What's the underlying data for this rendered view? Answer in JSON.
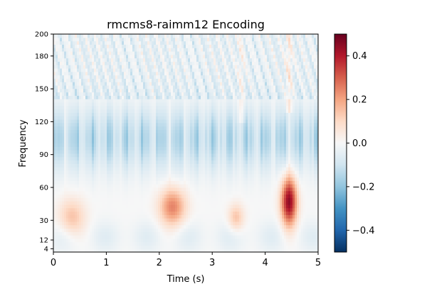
{
  "chart_data": {
    "type": "heatmap",
    "title": "rmcms8-raimm12 Encoding",
    "xlabel": "Time (s)",
    "ylabel": "Frequency",
    "xlim": [
      0,
      5
    ],
    "ylim": [
      1,
      200
    ],
    "x_ticks": [
      0,
      1,
      2,
      3,
      4,
      5
    ],
    "x_tick_labels": [
      "0",
      "1",
      "2",
      "3",
      "4",
      "5"
    ],
    "y_ticks": [
      4,
      12,
      30,
      60,
      90,
      120,
      150,
      180,
      200
    ],
    "y_tick_labels": [
      "4",
      "12",
      "30",
      "60",
      "90",
      "120",
      "150",
      "180",
      "200"
    ],
    "colormap": "RdBu_r",
    "colorbar": {
      "range": [
        -0.5,
        0.5
      ],
      "ticks": [
        0.4,
        0.2,
        0.0,
        -0.2,
        -0.4
      ],
      "tick_labels": [
        "0.4",
        "0.2",
        "0.0",
        "−0.2",
        "−0.4"
      ]
    },
    "features": [
      {
        "desc": "negative band",
        "t": [
          0,
          5
        ],
        "freq": [
          70,
          140
        ],
        "value": -0.25
      },
      {
        "desc": "positive blob",
        "t": [
          0.1,
          0.6
        ],
        "freq": [
          15,
          50
        ],
        "value": 0.15
      },
      {
        "desc": "positive blob",
        "t": [
          2.0,
          2.5
        ],
        "freq": [
          25,
          60
        ],
        "value": 0.25
      },
      {
        "desc": "positive blob",
        "t": [
          3.3,
          3.6
        ],
        "freq": [
          20,
          45
        ],
        "value": 0.15
      },
      {
        "desc": "strong positive blob",
        "t": [
          4.3,
          4.6
        ],
        "freq": [
          25,
          70
        ],
        "value": 0.45
      }
    ]
  }
}
